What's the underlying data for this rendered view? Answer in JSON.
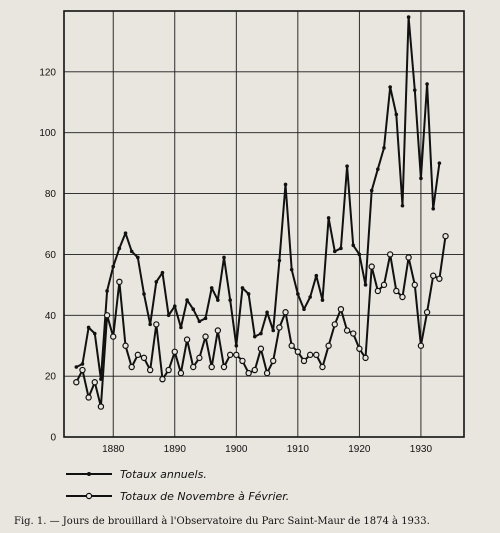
{
  "chart_data": {
    "type": "line",
    "title": "",
    "xlabel": "",
    "ylabel": "",
    "xlim": [
      1872,
      1937
    ],
    "ylim": [
      0,
      140
    ],
    "grid": true,
    "x_ticks": [
      1880,
      1890,
      1900,
      1910,
      1920,
      1930
    ],
    "y_ticks": [
      0,
      20,
      40,
      60,
      80,
      100,
      120
    ],
    "legend": {
      "placement": "bottom"
    },
    "series": [
      {
        "name": "Totaux annuels.",
        "marker": "dot",
        "points": [
          [
            1874,
            23
          ],
          [
            1875,
            24
          ],
          [
            1876,
            36
          ],
          [
            1877,
            34
          ],
          [
            1878,
            19
          ],
          [
            1879,
            48
          ],
          [
            1880,
            56
          ],
          [
            1881,
            62
          ],
          [
            1882,
            67
          ],
          [
            1883,
            61
          ],
          [
            1884,
            59
          ],
          [
            1885,
            47
          ],
          [
            1886,
            37
          ],
          [
            1887,
            51
          ],
          [
            1888,
            54
          ],
          [
            1889,
            40
          ],
          [
            1890,
            43
          ],
          [
            1891,
            36
          ],
          [
            1892,
            45
          ],
          [
            1893,
            42
          ],
          [
            1894,
            38
          ],
          [
            1895,
            39
          ],
          [
            1896,
            49
          ],
          [
            1897,
            45
          ],
          [
            1898,
            59
          ],
          [
            1899,
            45
          ],
          [
            1900,
            30
          ],
          [
            1901,
            49
          ],
          [
            1902,
            47
          ],
          [
            1903,
            33
          ],
          [
            1904,
            34
          ],
          [
            1905,
            41
          ],
          [
            1906,
            35
          ],
          [
            1907,
            58
          ],
          [
            1908,
            83
          ],
          [
            1909,
            55
          ],
          [
            1910,
            47
          ],
          [
            1911,
            42
          ],
          [
            1912,
            46
          ],
          [
            1913,
            53
          ],
          [
            1914,
            45
          ],
          [
            1915,
            72
          ],
          [
            1916,
            61
          ],
          [
            1917,
            62
          ],
          [
            1918,
            89
          ],
          [
            1919,
            63
          ],
          [
            1920,
            60
          ],
          [
            1921,
            50
          ],
          [
            1922,
            81
          ],
          [
            1923,
            88
          ],
          [
            1924,
            95
          ],
          [
            1925,
            115
          ],
          [
            1926,
            106
          ],
          [
            1927,
            76
          ],
          [
            1928,
            138
          ],
          [
            1929,
            114
          ],
          [
            1930,
            85
          ],
          [
            1931,
            116
          ],
          [
            1932,
            75
          ],
          [
            1933,
            90
          ]
        ]
      },
      {
        "name": "Totaux de Novembre à Février.",
        "marker": "open-circle",
        "points": [
          [
            1874,
            18
          ],
          [
            1875,
            22
          ],
          [
            1876,
            13
          ],
          [
            1877,
            18
          ],
          [
            1878,
            10
          ],
          [
            1879,
            40
          ],
          [
            1880,
            33
          ],
          [
            1881,
            51
          ],
          [
            1882,
            30
          ],
          [
            1883,
            23
          ],
          [
            1884,
            27
          ],
          [
            1885,
            26
          ],
          [
            1886,
            22
          ],
          [
            1887,
            37
          ],
          [
            1888,
            19
          ],
          [
            1889,
            22
          ],
          [
            1890,
            28
          ],
          [
            1891,
            21
          ],
          [
            1892,
            32
          ],
          [
            1893,
            23
          ],
          [
            1894,
            26
          ],
          [
            1895,
            33
          ],
          [
            1896,
            23
          ],
          [
            1897,
            35
          ],
          [
            1898,
            23
          ],
          [
            1899,
            27
          ],
          [
            1900,
            27
          ],
          [
            1901,
            25
          ],
          [
            1902,
            21
          ],
          [
            1903,
            22
          ],
          [
            1904,
            29
          ],
          [
            1905,
            21
          ],
          [
            1906,
            25
          ],
          [
            1907,
            36
          ],
          [
            1908,
            41
          ],
          [
            1909,
            30
          ],
          [
            1910,
            28
          ],
          [
            1911,
            25
          ],
          [
            1912,
            27
          ],
          [
            1913,
            27
          ],
          [
            1914,
            23
          ],
          [
            1915,
            30
          ],
          [
            1916,
            37
          ],
          [
            1917,
            42
          ],
          [
            1918,
            35
          ],
          [
            1919,
            34
          ],
          [
            1920,
            29
          ],
          [
            1921,
            26
          ],
          [
            1922,
            56
          ],
          [
            1923,
            48
          ],
          [
            1924,
            50
          ],
          [
            1925,
            60
          ],
          [
            1926,
            48
          ],
          [
            1927,
            46
          ],
          [
            1928,
            59
          ],
          [
            1929,
            50
          ],
          [
            1930,
            30
          ],
          [
            1931,
            41
          ],
          [
            1932,
            53
          ],
          [
            1933,
            52
          ],
          [
            1934,
            66
          ]
        ]
      }
    ]
  },
  "caption": "Fig. 1. — Jours de brouillard à l'Observatoire du Parc Saint-Maur de 1874 à 1933.",
  "colors": {
    "ink": "#111111",
    "paper": "#e9e6df",
    "grid": "#1a1a1a"
  }
}
